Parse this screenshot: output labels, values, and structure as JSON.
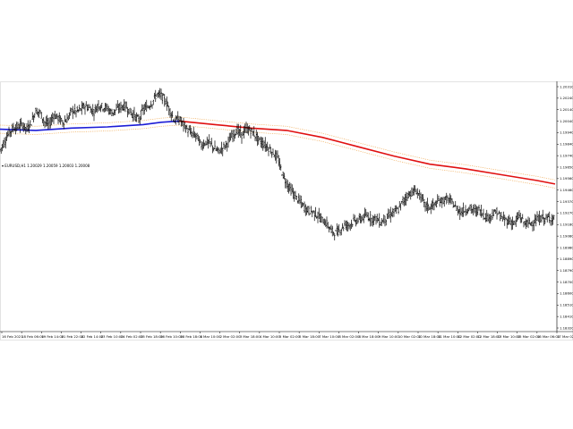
{
  "header": {
    "symbol_info": "EURUSD,H1",
    "ohlc": "1.20029 1.20059 1.20003 1.20008"
  },
  "colors": {
    "background": "#ffffff",
    "candles": "#000000",
    "ma_blue": "#1c1cd6",
    "ma_red": "#e01010",
    "envelope": "#f0b060"
  },
  "chart_data": {
    "type": "line",
    "title": "EURUSD,H1",
    "xlabel": "",
    "ylabel": "",
    "ylim": [
      1.183,
      1.204
    ],
    "y_ticks": [
      "1.20310",
      "1.20240",
      "1.20140",
      "1.20040",
      "1.19940",
      "1.19840",
      "1.19740",
      "1.19650",
      "1.19560",
      "1.19460",
      "1.19370",
      "1.19270",
      "1.19180",
      "1.19080",
      "1.18980",
      "1.18890",
      "1.18790",
      "1.18700",
      "1.18600",
      "1.18510",
      "1.18410",
      "1.18320"
    ],
    "x_ticks": [
      "16 Feb 2021",
      "18 Feb 06:00",
      "19 Feb 14:00",
      "21 Feb 22:00",
      "22 Feb 14:00",
      "23 Feb 10:00",
      "24 Feb 02:00",
      "25 Feb 18:00",
      "26 Feb 10:00",
      "28 Feb 18:00",
      "1 Mar 10:00",
      "2 Mar 02:00",
      "3 Mar 18:00",
      "4 Mar 10:00",
      "5 Mar 02:00",
      "5 Mar 18:00",
      "7 Mar 10:00",
      "8 Mar 02:00",
      "8 Mar 18:00",
      "9 Mar 10:00",
      "10 Mar 02:00",
      "10 Mar 18:00",
      "11 Mar 10:00",
      "12 Mar 02:00",
      "12 Mar 18:00",
      "13 Mar 10:00",
      "15 Mar 02:00",
      "16 Mar 06:00",
      "17 Mar 02:00"
    ],
    "series": [
      {
        "kind": "price",
        "x": [
          0,
          5,
          10,
          15,
          20,
          25,
          30,
          35,
          40,
          45,
          50,
          55,
          60,
          65,
          70,
          75,
          80,
          85,
          90,
          95,
          100,
          105,
          110,
          115,
          120,
          125,
          130,
          135,
          140,
          145,
          150,
          155,
          160,
          165,
          170,
          175,
          180,
          185,
          190,
          195,
          200,
          205,
          210,
          215,
          220,
          225,
          230,
          235,
          240,
          245,
          250,
          255,
          260,
          265,
          270,
          275,
          280,
          285,
          290,
          295,
          300,
          305,
          310,
          315,
          320,
          325,
          330,
          335,
          340,
          345,
          350,
          355,
          360,
          365,
          370,
          375,
          380,
          385,
          390,
          395,
          400,
          405,
          410,
          415,
          420,
          425,
          430,
          435,
          440,
          445,
          450,
          455,
          460,
          465,
          470,
          475,
          480,
          485,
          490,
          495,
          500,
          505,
          510,
          515,
          520,
          525,
          530,
          535,
          540,
          545,
          550,
          555,
          560,
          565,
          570,
          575,
          580,
          585,
          590,
          595,
          600,
          605,
          610,
          615,
          620
        ],
        "y": [
          1.1984,
          1.1991,
          1.1999,
          1.2003,
          1.2004,
          1.2006,
          1.2002,
          1.2008,
          1.2018,
          1.2016,
          1.2008,
          1.2006,
          1.2014,
          1.2012,
          1.2008,
          1.201,
          1.2018,
          1.2017,
          1.2019,
          1.2022,
          1.202,
          1.2017,
          1.2023,
          1.2021,
          1.202,
          1.2016,
          1.2019,
          1.2021,
          1.2022,
          1.2017,
          1.2014,
          1.201,
          1.2019,
          1.2021,
          1.2025,
          1.2032,
          1.2031,
          1.2026,
          1.2018,
          1.2009,
          1.2011,
          1.2006,
          1.2001,
          1.1998,
          1.1996,
          1.1988,
          1.1991,
          1.199,
          1.1985,
          1.1983,
          1.1987,
          1.1991,
          1.1997,
          1.2001,
          1.1997,
          1.2002,
          1.2001,
          1.1997,
          1.1992,
          1.1989,
          1.1986,
          1.1982,
          1.1977,
          1.1965,
          1.1956,
          1.195,
          1.1944,
          1.194,
          1.1935,
          1.1932,
          1.1931,
          1.1928,
          1.1924,
          1.1921,
          1.1915,
          1.1913,
          1.1916,
          1.192,
          1.192,
          1.1923,
          1.1924,
          1.1926,
          1.1928,
          1.1925,
          1.1926,
          1.1922,
          1.1925,
          1.1928,
          1.1931,
          1.1933,
          1.194,
          1.1945,
          1.1948,
          1.1949,
          1.1944,
          1.1937,
          1.1935,
          1.1937,
          1.194,
          1.1941,
          1.1942,
          1.1939,
          1.1934,
          1.1931,
          1.1933,
          1.1934,
          1.1932,
          1.1933,
          1.1929,
          1.1926,
          1.1929,
          1.1931,
          1.1926,
          1.1924,
          1.1923,
          1.1921,
          1.1928,
          1.1922,
          1.1921,
          1.1922,
          1.1924,
          1.1926,
          1.1925,
          1.1926,
          1.1925
        ]
      },
      {
        "kind": "moving-average",
        "x": [
          0,
          40,
          80,
          120,
          160,
          180,
          200,
          240,
          280,
          320,
          360,
          400,
          440,
          480,
          520,
          560,
          600,
          620
        ],
        "y": [
          1.2002,
          1.2001,
          1.2003,
          1.2004,
          1.2006,
          1.2008,
          1.2009,
          1.2006,
          1.2003,
          1.2001,
          1.1995,
          1.1987,
          1.1979,
          1.1972,
          1.1968,
          1.1963,
          1.1958,
          1.1955
        ]
      }
    ],
    "ma_blue_until_x": 200,
    "envelope_offset": 0.00035,
    "grid": false,
    "legend": "none"
  }
}
